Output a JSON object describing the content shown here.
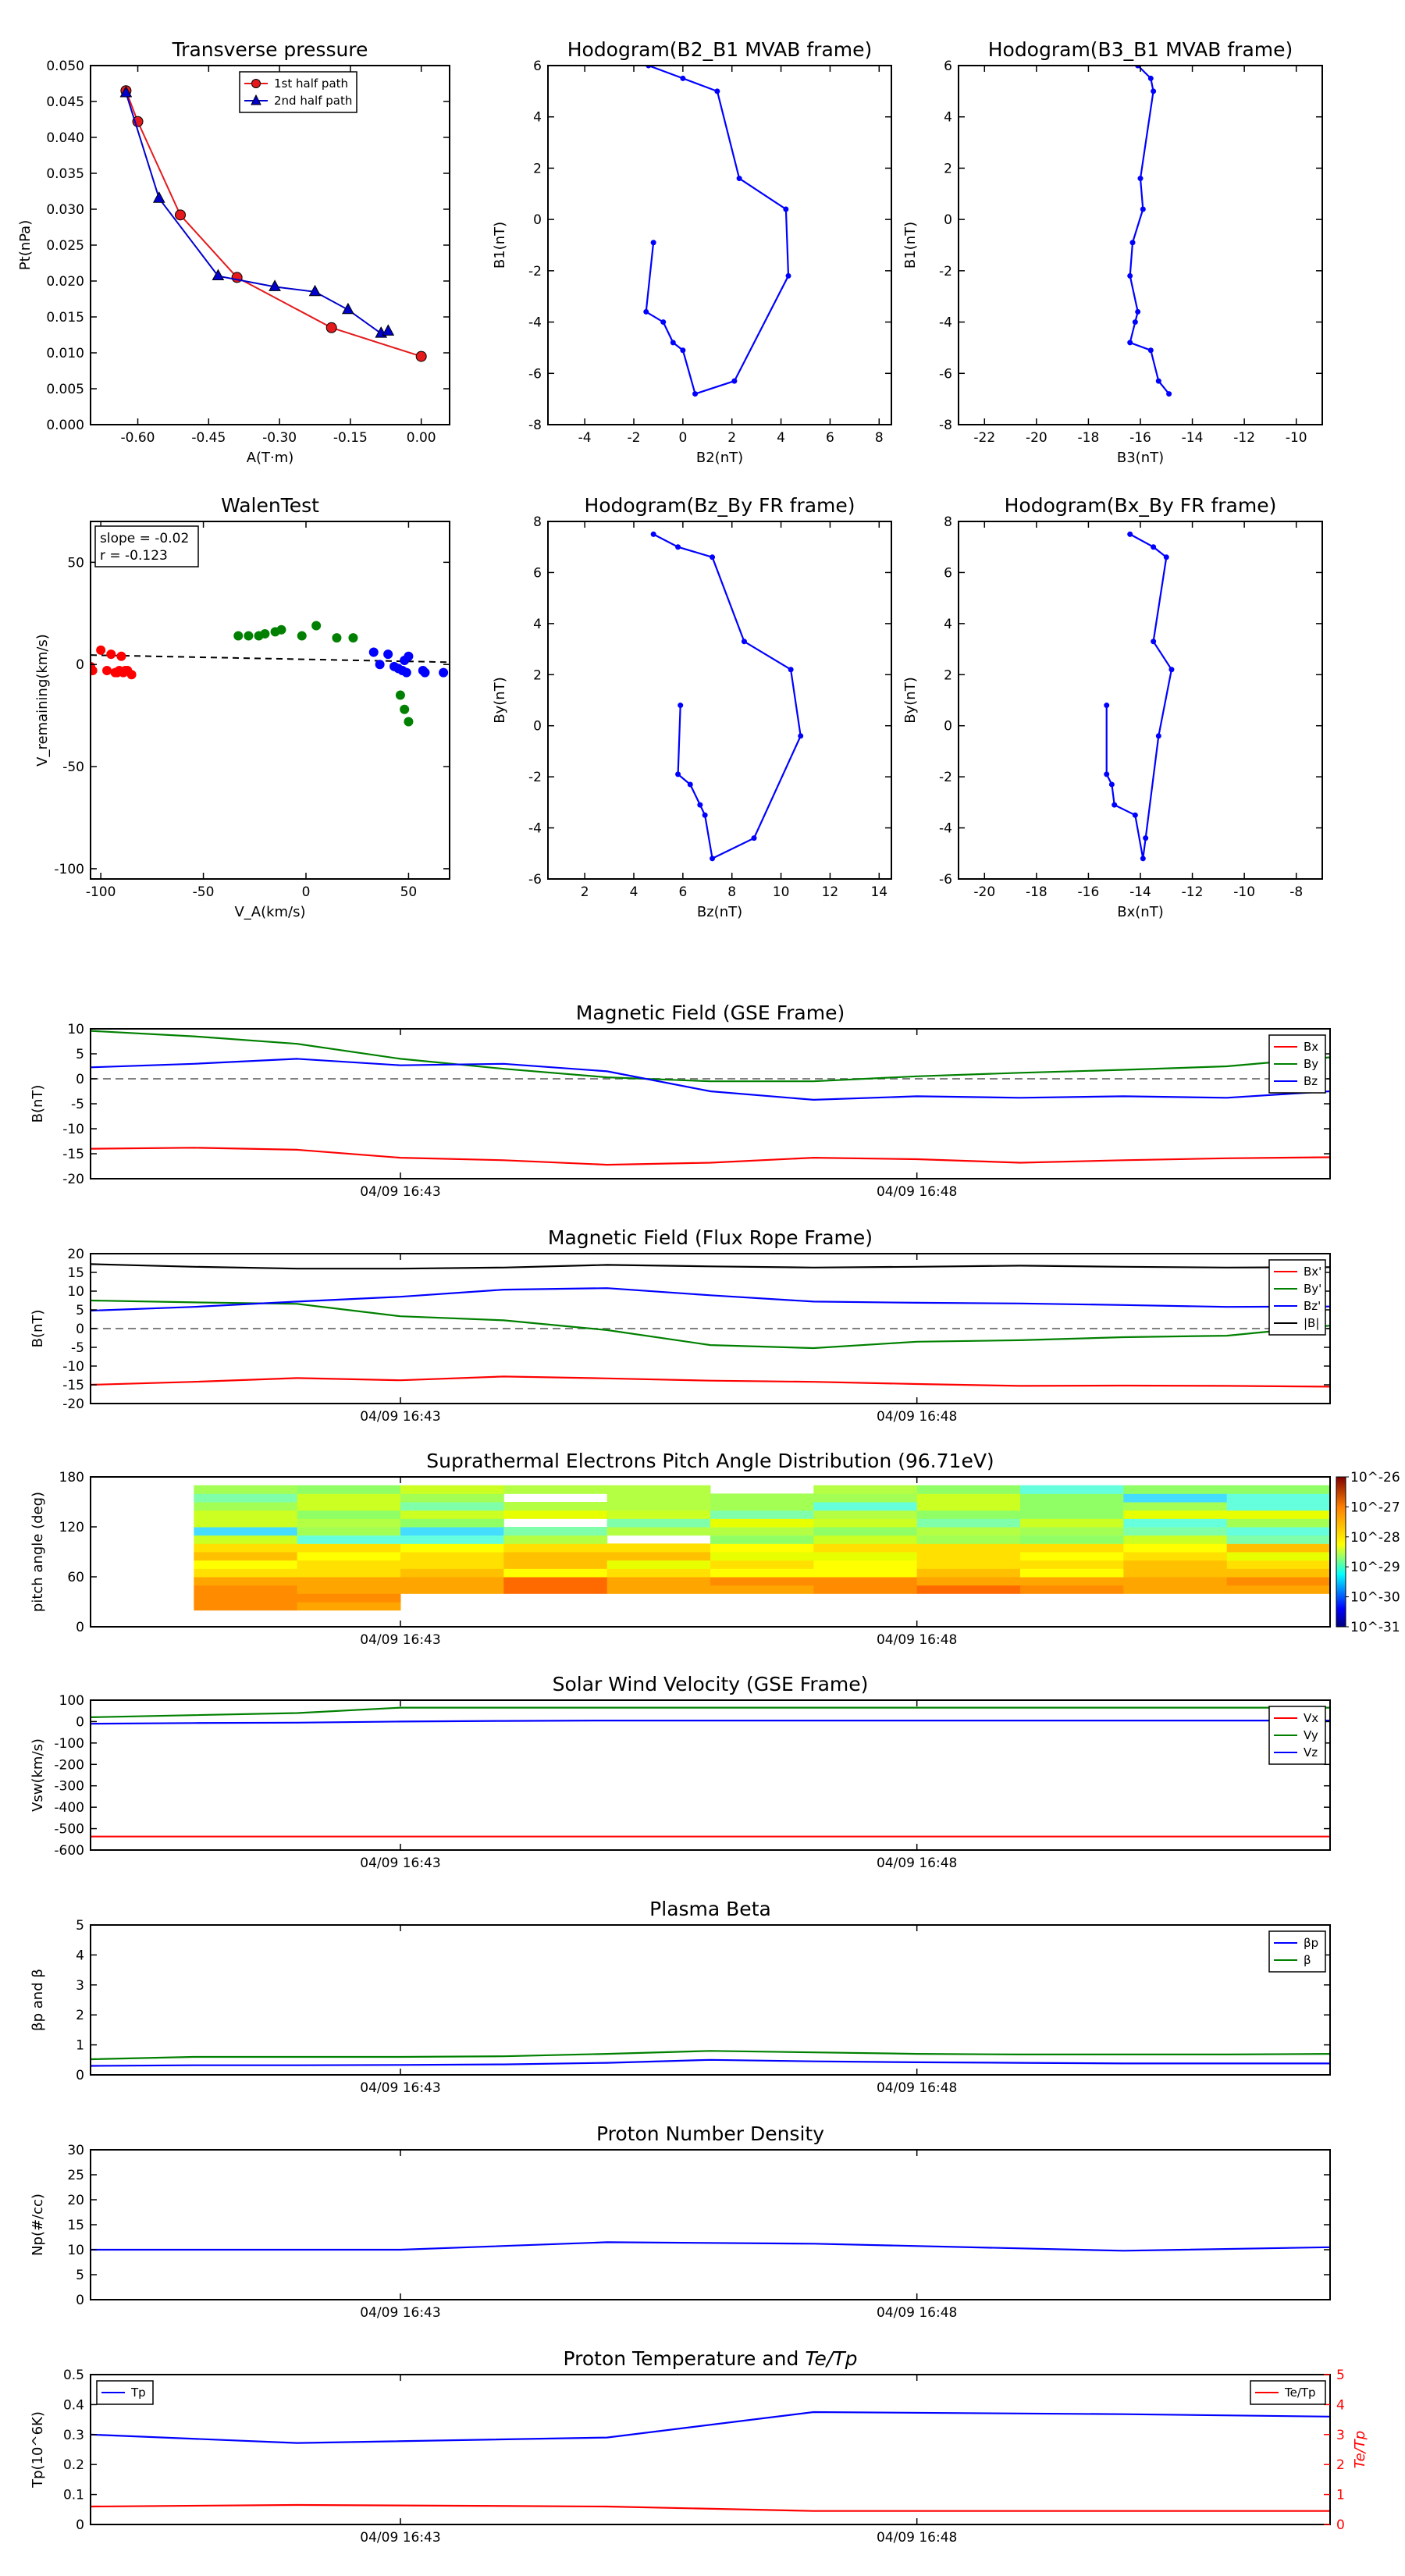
{
  "chart_data": [
    {
      "id": "tp",
      "type": "line",
      "title": "Transverse pressure",
      "xlabel": "A(T·m)",
      "ylabel": "Pt(nPa)",
      "xlim": [
        -0.7,
        0.06
      ],
      "ylim": [
        0,
        0.05
      ],
      "xticks": [
        -0.6,
        -0.45,
        -0.3,
        -0.15,
        0.0
      ],
      "xtick_labels": [
        "-0.60",
        "-0.45",
        "-0.30",
        "-0.15",
        "0.00"
      ],
      "yticks": [
        0,
        0.005,
        0.01,
        0.015,
        0.02,
        0.025,
        0.03,
        0.035,
        0.04,
        0.045,
        0.05
      ],
      "ytick_labels": [
        "0.000",
        "0.005",
        "0.010",
        "0.015",
        "0.020",
        "0.025",
        "0.030",
        "0.035",
        "0.040",
        "0.045",
        "0.050"
      ],
      "legend_position": "top-center",
      "series": [
        {
          "name": "1st half path",
          "color": "#e41a1c",
          "marker": "circle",
          "x": [
            -0.625,
            -0.6,
            -0.51,
            -0.39,
            -0.19,
            0.0
          ],
          "y": [
            0.0465,
            0.0422,
            0.0292,
            0.0205,
            0.0135,
            0.0095
          ]
        },
        {
          "name": "2nd half path",
          "color": "#0000cc",
          "marker": "triangle",
          "x": [
            -0.625,
            -0.555,
            -0.43,
            -0.31,
            -0.225,
            -0.155,
            -0.085,
            -0.07
          ],
          "y": [
            0.0462,
            0.0315,
            0.0207,
            0.0192,
            0.0185,
            0.016,
            0.0127,
            0.013
          ]
        }
      ]
    },
    {
      "id": "h1",
      "type": "line",
      "title": "Hodogram(B2_B1 MVAB frame)",
      "xlabel": "B2(nT)",
      "ylabel": "B1(nT)",
      "xlim": [
        -5.5,
        8.5
      ],
      "ylim": [
        -8,
        6
      ],
      "xticks": [
        -4,
        -2,
        0,
        2,
        4,
        6,
        8
      ],
      "yticks": [
        -8,
        -6,
        -4,
        -2,
        0,
        2,
        4,
        6
      ],
      "series": [
        {
          "color": "#0000ff",
          "x": [
            -1.4,
            0.0,
            1.4,
            2.3,
            4.2,
            4.3,
            2.1,
            0.5,
            0.0,
            -0.4,
            -0.8,
            -1.5,
            -1.2
          ],
          "y": [
            6.0,
            5.5,
            5.0,
            1.6,
            0.4,
            -2.2,
            -6.3,
            -6.8,
            -5.1,
            -4.8,
            -4.0,
            -3.6,
            -0.9
          ]
        }
      ]
    },
    {
      "id": "h2",
      "type": "line",
      "title": "Hodogram(B3_B1 MVAB frame)",
      "xlabel": "B3(nT)",
      "ylabel": "B1(nT)",
      "xlim": [
        -23,
        -9
      ],
      "ylim": [
        -8,
        6
      ],
      "xticks": [
        -22,
        -20,
        -18,
        -16,
        -14,
        -12,
        -10
      ],
      "yticks": [
        -8,
        -6,
        -4,
        -2,
        0,
        2,
        4,
        6
      ],
      "series": [
        {
          "color": "#0000ff",
          "x": [
            -16.1,
            -15.6,
            -15.5,
            -16.0,
            -15.9,
            -16.3,
            -16.4,
            -16.1,
            -16.2,
            -16.4,
            -15.6,
            -15.3,
            -14.9
          ],
          "y": [
            6.0,
            5.5,
            5.0,
            1.6,
            0.4,
            -0.9,
            -2.2,
            -3.6,
            -4.0,
            -4.8,
            -5.1,
            -6.3,
            -6.8
          ]
        }
      ]
    },
    {
      "id": "walen",
      "type": "scatter",
      "title": "WalenTest",
      "xlabel": "V_A(km/s)",
      "ylabel": "V_remaining(km/s)",
      "xlim": [
        -105,
        70
      ],
      "ylim": [
        -105,
        70
      ],
      "xticks": [
        -100,
        -50,
        0,
        50
      ],
      "yticks": [
        -100,
        -50,
        0,
        50
      ],
      "annotation": [
        "slope = -0.02",
        "r = -0.123"
      ],
      "fit_line": {
        "slope": -0.02,
        "intercept": 2.5
      },
      "series": [
        {
          "color": "#ff0000",
          "x": [
            -105,
            -104,
            -100,
            -97,
            -95,
            -93,
            -92,
            -91,
            -90,
            -89,
            -88,
            -87,
            -85
          ],
          "y": [
            -1,
            -3,
            7,
            -3,
            5,
            -4,
            -4,
            -3,
            4,
            -4,
            -3,
            -3,
            -5
          ]
        },
        {
          "color": "#008000",
          "x": [
            -33,
            -28,
            -23,
            -20,
            -15,
            -12,
            -2,
            5,
            15,
            23,
            46,
            48,
            50
          ],
          "y": [
            14,
            14,
            14,
            15,
            16,
            17,
            14,
            19,
            13,
            13,
            -15,
            -22,
            -28
          ]
        },
        {
          "color": "#0000ff",
          "x": [
            33,
            36,
            40,
            43,
            45,
            47,
            48,
            49,
            50,
            57,
            58,
            67
          ],
          "y": [
            6,
            0,
            5,
            -1,
            -2,
            -3,
            2,
            -4,
            4,
            -3,
            -4,
            -4
          ]
        }
      ]
    },
    {
      "id": "h3",
      "type": "line",
      "title": "Hodogram(Bz_By FR frame)",
      "xlabel": "Bz(nT)",
      "ylabel": "By(nT)",
      "xlim": [
        0.5,
        14.5
      ],
      "ylim": [
        -6,
        8
      ],
      "xticks": [
        2,
        4,
        6,
        8,
        10,
        12,
        14
      ],
      "yticks": [
        -6,
        -4,
        -2,
        0,
        2,
        4,
        6,
        8
      ],
      "series": [
        {
          "color": "#0000ff",
          "x": [
            4.8,
            5.8,
            7.2,
            8.5,
            10.4,
            10.8,
            8.9,
            7.2,
            6.9,
            6.7,
            6.3,
            5.8,
            5.9
          ],
          "y": [
            7.5,
            7.0,
            6.6,
            3.3,
            2.2,
            -0.4,
            -4.4,
            -5.2,
            -3.5,
            -3.1,
            -2.3,
            -1.9,
            0.8
          ]
        }
      ]
    },
    {
      "id": "h4",
      "type": "line",
      "title": "Hodogram(Bx_By FR frame)",
      "xlabel": "Bx(nT)",
      "ylabel": "By(nT)",
      "xlim": [
        -21,
        -7
      ],
      "ylim": [
        -6,
        8
      ],
      "xticks": [
        -20,
        -18,
        -16,
        -14,
        -12,
        -10,
        -8
      ],
      "yticks": [
        -6,
        -4,
        -2,
        0,
        2,
        4,
        6,
        8
      ],
      "series": [
        {
          "color": "#0000ff",
          "x": [
            -14.4,
            -13.5,
            -13.0,
            -13.5,
            -12.8,
            -13.3,
            -13.8,
            -13.9,
            -14.2,
            -15.0,
            -15.1,
            -15.3,
            -15.3
          ],
          "y": [
            7.5,
            7.0,
            6.6,
            3.3,
            2.2,
            -0.4,
            -4.4,
            -5.2,
            -3.5,
            -3.1,
            -2.3,
            -1.9,
            0.8
          ]
        }
      ]
    },
    {
      "id": "bgse",
      "type": "line",
      "title": "Magnetic Field (GSE Frame)",
      "ylabel": "B(nT)",
      "xlim": [
        0,
        12
      ],
      "ylim": [
        -20,
        10
      ],
      "yticks": [
        -20,
        -15,
        -10,
        -5,
        0,
        5,
        10
      ],
      "xticks": [
        3,
        8
      ],
      "xtick_labels": [
        "04/09 16:43",
        "04/09 16:48"
      ],
      "zero_line": true,
      "legend_position": "top-right",
      "x": [
        0,
        1,
        2,
        3,
        4,
        5,
        6,
        7,
        8,
        9,
        10,
        11,
        12
      ],
      "series": [
        {
          "name": "Bx",
          "color": "#ff0000",
          "values": [
            -14,
            -13.8,
            -14.2,
            -15.8,
            -16.3,
            -17.2,
            -16.8,
            -15.8,
            -16.1,
            -16.8,
            -16.3,
            -15.9,
            -15.7
          ]
        },
        {
          "name": "By",
          "color": "#008000",
          "values": [
            9.6,
            8.5,
            7.0,
            4.0,
            2.0,
            0.3,
            -0.5,
            -0.5,
            0.5,
            1.2,
            1.8,
            2.5,
            4.3
          ]
        },
        {
          "name": "Bz",
          "color": "#0000ff",
          "values": [
            2.3,
            3.0,
            4.0,
            2.7,
            3.0,
            1.5,
            -2.5,
            -4.2,
            -3.5,
            -3.8,
            -3.5,
            -3.8,
            -2.5
          ]
        }
      ]
    },
    {
      "id": "bfr",
      "type": "line",
      "title": "Magnetic Field (Flux Rope Frame)",
      "ylabel": "B(nT)",
      "xlim": [
        0,
        12
      ],
      "ylim": [
        -20,
        20
      ],
      "yticks": [
        -20,
        -15,
        -10,
        -5,
        0,
        5,
        10,
        15,
        20
      ],
      "xticks": [
        3,
        8
      ],
      "xtick_labels": [
        "04/09 16:43",
        "04/09 16:48"
      ],
      "zero_line": true,
      "legend_position": "top-right",
      "x": [
        0,
        1,
        2,
        3,
        4,
        5,
        6,
        7,
        8,
        9,
        10,
        11,
        12
      ],
      "series": [
        {
          "name": "Bx'",
          "color": "#ff0000",
          "values": [
            -15,
            -14.2,
            -13.2,
            -13.8,
            -12.8,
            -13.3,
            -13.9,
            -14.2,
            -14.8,
            -15.3,
            -15.2,
            -15.3,
            -15.5
          ]
        },
        {
          "name": "By'",
          "color": "#008000",
          "values": [
            7.5,
            7.0,
            6.6,
            3.3,
            2.2,
            -0.4,
            -4.4,
            -5.2,
            -3.5,
            -3.1,
            -2.3,
            -1.9,
            0.8
          ]
        },
        {
          "name": "Bz'",
          "color": "#0000ff",
          "values": [
            4.8,
            5.8,
            7.2,
            8.5,
            10.4,
            10.8,
            8.9,
            7.2,
            6.9,
            6.7,
            6.3,
            5.8,
            5.9
          ]
        },
        {
          "name": "|B|",
          "color": "#000000",
          "values": [
            17.2,
            16.5,
            16.0,
            16.0,
            16.3,
            17.0,
            16.6,
            16.3,
            16.5,
            16.8,
            16.5,
            16.3,
            16.4
          ]
        }
      ]
    },
    {
      "id": "pad",
      "type": "heatmap",
      "title": "Suprathermal Electrons Pitch Angle Distribution (96.71eV)",
      "ylabel": "pitch angle (deg)",
      "xlim": [
        0,
        12
      ],
      "ylim": [
        0,
        180
      ],
      "yticks": [
        0,
        60,
        120,
        180
      ],
      "xticks": [
        3,
        8
      ],
      "xtick_labels": [
        "04/09 16:43",
        "04/09 16:48"
      ],
      "colorbar_ticks": [
        "10^-26",
        "10^-27",
        "10^-28",
        "10^-29",
        "10^-30",
        "10^-31"
      ],
      "columns": 11,
      "rows": 18,
      "x_start": 1,
      "x_end": 12
    },
    {
      "id": "vsw",
      "type": "line",
      "title": "Solar Wind Velocity (GSE Frame)",
      "ylabel": "Vsw(km/s)",
      "xlim": [
        0,
        12
      ],
      "ylim": [
        -600,
        100
      ],
      "yticks": [
        -600,
        -500,
        -400,
        -300,
        -200,
        -100,
        0,
        100
      ],
      "xticks": [
        3,
        8
      ],
      "xtick_labels": [
        "04/09 16:43",
        "04/09 16:48"
      ],
      "legend_position": "top-right",
      "x": [
        0,
        1,
        2,
        3,
        4,
        5,
        6,
        7,
        8,
        9,
        10,
        11,
        12
      ],
      "series": [
        {
          "name": "Vx",
          "color": "#ff0000",
          "values": [
            -537,
            -537,
            -537,
            -537,
            -537,
            -537,
            -537,
            -537,
            -537,
            -537,
            -537,
            -537,
            -537
          ]
        },
        {
          "name": "Vy",
          "color": "#008000",
          "values": [
            20,
            30,
            40,
            65,
            65,
            65,
            65,
            65,
            65,
            65,
            65,
            65,
            65
          ]
        },
        {
          "name": "Vz",
          "color": "#0000ff",
          "values": [
            -10,
            -7,
            -5,
            0,
            3,
            5,
            5,
            5,
            5,
            5,
            5,
            5,
            5
          ]
        }
      ]
    },
    {
      "id": "beta",
      "type": "line",
      "title": "Plasma Beta",
      "ylabel": "βp and β",
      "xlim": [
        0,
        12
      ],
      "ylim": [
        0,
        5
      ],
      "yticks": [
        0,
        1,
        2,
        3,
        4,
        5
      ],
      "xticks": [
        3,
        8
      ],
      "xtick_labels": [
        "04/09 16:43",
        "04/09 16:48"
      ],
      "legend_position": "top-right",
      "x": [
        0,
        1,
        2,
        3,
        4,
        5,
        6,
        7,
        8,
        9,
        10,
        11,
        12
      ],
      "series": [
        {
          "name": "βp",
          "color": "#0000ff",
          "values": [
            0.3,
            0.32,
            0.32,
            0.33,
            0.35,
            0.4,
            0.5,
            0.45,
            0.42,
            0.4,
            0.38,
            0.38,
            0.38
          ]
        },
        {
          "name": "β",
          "color": "#008000",
          "values": [
            0.52,
            0.6,
            0.6,
            0.6,
            0.62,
            0.7,
            0.8,
            0.75,
            0.7,
            0.68,
            0.68,
            0.68,
            0.7
          ]
        }
      ]
    },
    {
      "id": "np",
      "type": "line",
      "title": "Proton Number Density",
      "ylabel": "Np(#/cc)",
      "xlim": [
        0,
        12
      ],
      "ylim": [
        0,
        30
      ],
      "yticks": [
        0,
        5,
        10,
        15,
        20,
        25,
        30
      ],
      "xticks": [
        3,
        8
      ],
      "xtick_labels": [
        "04/09 16:43",
        "04/09 16:48"
      ],
      "x": [
        0,
        3,
        5,
        7,
        10,
        12
      ],
      "series": [
        {
          "color": "#0000ff",
          "values": [
            10,
            10,
            11.5,
            11.2,
            9.8,
            10.5
          ]
        }
      ]
    },
    {
      "id": "tp2",
      "type": "line",
      "title": "Proton Temperature and Te/Tp",
      "ylabel": "Tp(10^6K)",
      "ylabel_right": "Te/Tp",
      "xlim": [
        0,
        12
      ],
      "ylim": [
        0,
        0.5
      ],
      "ylim_right": [
        0,
        5
      ],
      "yticks": [
        0,
        0.1,
        0.2,
        0.3,
        0.4,
        0.5
      ],
      "yticks_right": [
        0,
        1,
        2,
        3,
        4,
        5
      ],
      "xticks": [
        3,
        8
      ],
      "xtick_labels": [
        "04/09 16:43",
        "04/09 16:48"
      ],
      "x": [
        0,
        2,
        5,
        7,
        10,
        12
      ],
      "series": [
        {
          "name": "Tp",
          "color": "#0000ff",
          "axis": "left",
          "legend_position": "top-left",
          "values": [
            0.3,
            0.272,
            0.29,
            0.375,
            0.368,
            0.36
          ]
        },
        {
          "name": "Te/Tp",
          "color": "#ff0000",
          "axis": "right",
          "legend_position": "top-right",
          "values": [
            0.6,
            0.65,
            0.6,
            0.45,
            0.45,
            0.45
          ]
        }
      ]
    }
  ]
}
